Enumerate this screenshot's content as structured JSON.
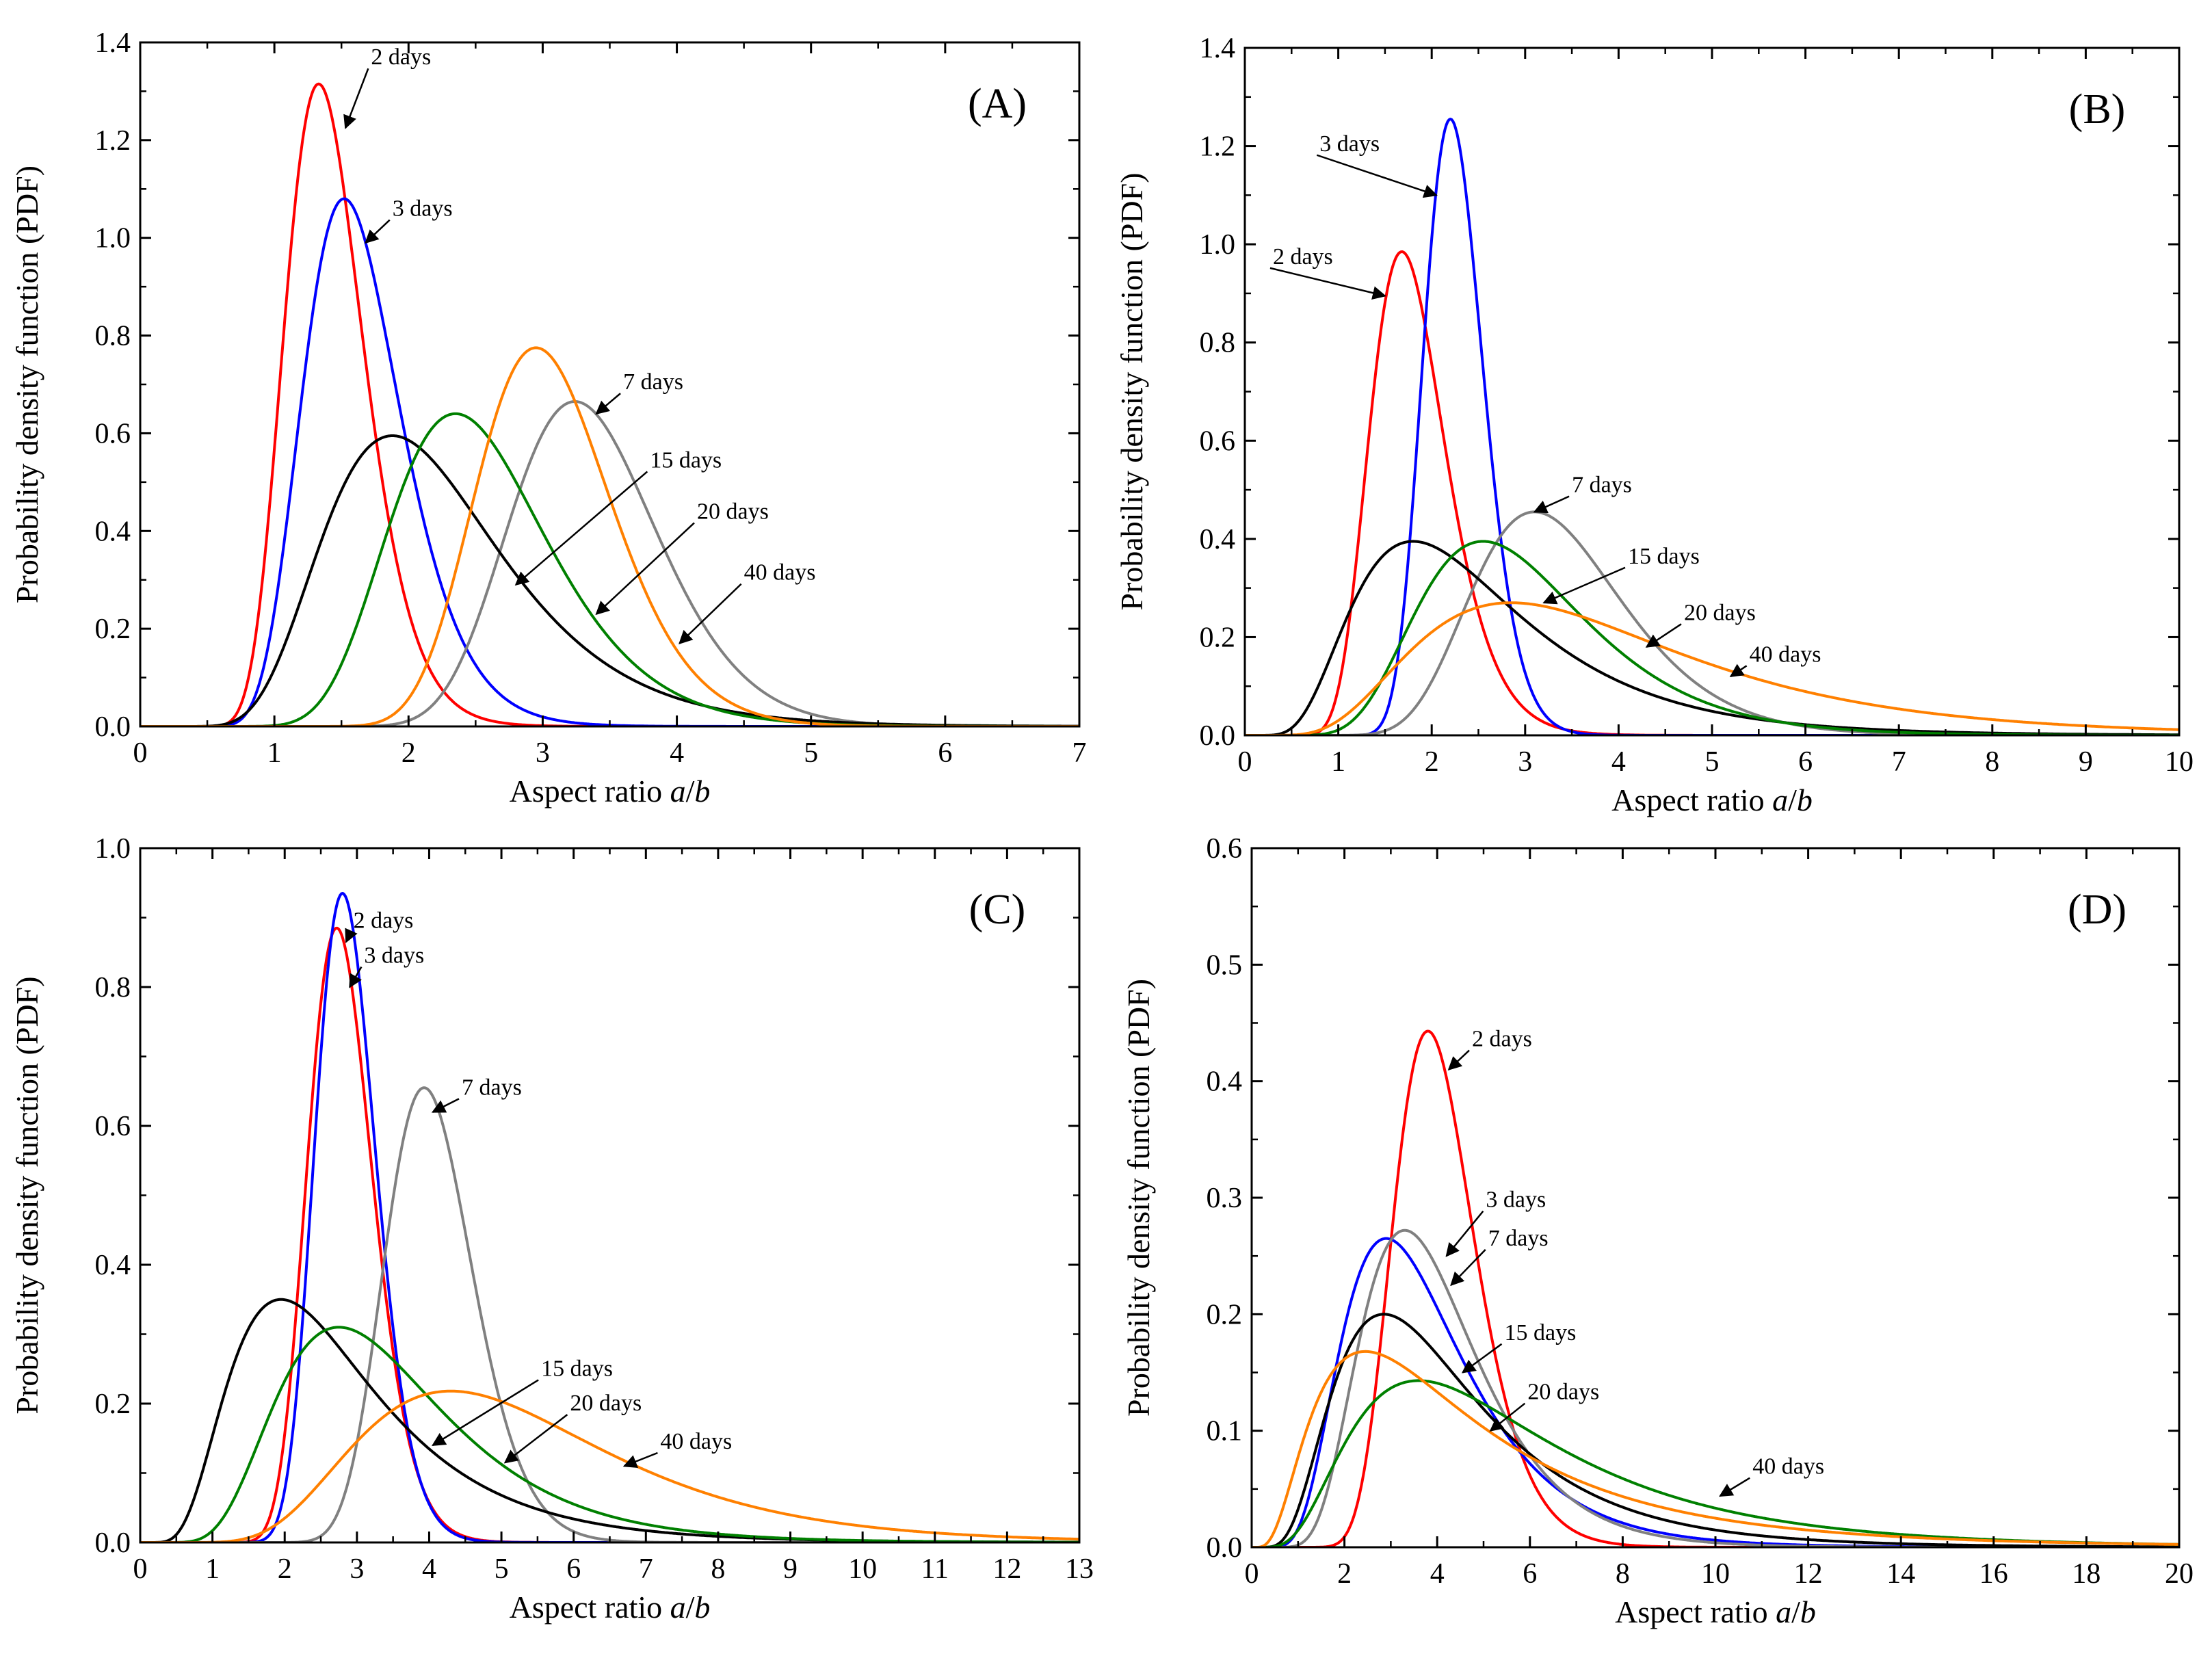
{
  "chart_data": [
    {
      "type": "line",
      "panel_label": "(A)",
      "xlabel": "Aspect ratio a/b",
      "xlabel_parts": [
        "Aspect ratio ",
        "a",
        "/",
        "b"
      ],
      "ylabel": "Probability density function (PDF)",
      "xlim": [
        0,
        7
      ],
      "ylim": [
        0,
        1.4
      ],
      "x_ticks": [
        0,
        1,
        2,
        3,
        4,
        5,
        6,
        7
      ],
      "y_ticks": [
        0.0,
        0.2,
        0.4,
        0.6,
        0.8,
        1.0,
        1.2,
        1.4
      ],
      "y_tick_decimals": 1,
      "series": [
        {
          "name": "2 days",
          "color": "#ff0000",
          "dist": "lognormal",
          "peak_x": 1.33,
          "peak_y": 1.315,
          "shape": 0.22
        },
        {
          "name": "3 days",
          "color": "#0000ff",
          "dist": "lognormal",
          "peak_x": 1.52,
          "peak_y": 1.08,
          "shape": 0.24
        },
        {
          "name": "7 days",
          "color": "#808080",
          "dist": "lognormal",
          "peak_x": 3.24,
          "peak_y": 0.665,
          "shape": 0.17
        },
        {
          "name": "15 days",
          "color": "#000000",
          "dist": "lognormal",
          "peak_x": 1.88,
          "peak_y": 0.595,
          "shape": 0.35
        },
        {
          "name": "20 days",
          "color": "#008000",
          "dist": "lognormal",
          "peak_x": 2.35,
          "peak_y": 0.64,
          "shape": 0.25
        },
        {
          "name": "40 days",
          "color": "#ff8000",
          "dist": "lognormal",
          "peak_x": 2.95,
          "peak_y": 0.775,
          "shape": 0.17
        }
      ],
      "annotations": [
        {
          "text": "2 days",
          "label_x": 1.72,
          "label_y": 1.355,
          "arrow_x": 1.53,
          "arrow_y": 1.225
        },
        {
          "text": "3 days",
          "label_x": 1.88,
          "label_y": 1.045,
          "arrow_x": 1.68,
          "arrow_y": 0.99
        },
        {
          "text": "7 days",
          "label_x": 3.6,
          "label_y": 0.69,
          "arrow_x": 3.4,
          "arrow_y": 0.64
        },
        {
          "text": "15 days",
          "label_x": 3.8,
          "label_y": 0.53,
          "arrow_x": 2.8,
          "arrow_y": 0.29
        },
        {
          "text": "20 days",
          "label_x": 4.15,
          "label_y": 0.425,
          "arrow_x": 3.4,
          "arrow_y": 0.23
        },
        {
          "text": "40 days",
          "label_x": 4.5,
          "label_y": 0.3,
          "arrow_x": 4.02,
          "arrow_y": 0.17
        }
      ]
    },
    {
      "type": "line",
      "panel_label": "(B)",
      "xlabel": "Aspect ratio a/b",
      "xlabel_parts": [
        "Aspect ratio ",
        "a",
        "/",
        "b"
      ],
      "ylabel": "Probability density function (PDF)",
      "xlim": [
        0,
        10
      ],
      "ylim": [
        0,
        1.4
      ],
      "x_ticks": [
        0,
        1,
        2,
        3,
        4,
        5,
        6,
        7,
        8,
        9,
        10
      ],
      "y_ticks": [
        0.0,
        0.2,
        0.4,
        0.6,
        0.8,
        1.0,
        1.2,
        1.4
      ],
      "y_tick_decimals": 1,
      "series": [
        {
          "name": "2 days",
          "color": "#ff0000",
          "dist": "lognormal",
          "peak_x": 1.68,
          "peak_y": 0.985,
          "shape": 0.24
        },
        {
          "name": "3 days",
          "color": "#0000ff",
          "dist": "lognormal",
          "peak_x": 2.2,
          "peak_y": 1.255,
          "shape": 0.145
        },
        {
          "name": "7 days",
          "color": "#808080",
          "dist": "lognormal",
          "peak_x": 3.1,
          "peak_y": 0.455,
          "shape": 0.26
        },
        {
          "name": "15 days",
          "color": "#000000",
          "dist": "lognormal",
          "peak_x": 1.8,
          "peak_y": 0.395,
          "shape": 0.5
        },
        {
          "name": "20 days",
          "color": "#008000",
          "dist": "lognormal",
          "peak_x": 2.55,
          "peak_y": 0.395,
          "shape": 0.35
        },
        {
          "name": "40 days",
          "color": "#ff8000",
          "dist": "lognormal",
          "peak_x": 2.85,
          "peak_y": 0.27,
          "shape": 0.5
        }
      ],
      "annotations": [
        {
          "text": "3 days",
          "label_x": 0.8,
          "label_y": 1.19,
          "arrow_x": 2.05,
          "arrow_y": 1.1
        },
        {
          "text": "2 days",
          "label_x": 0.3,
          "label_y": 0.96,
          "arrow_x": 1.5,
          "arrow_y": 0.895
        },
        {
          "text": "7 days",
          "label_x": 3.5,
          "label_y": 0.495,
          "arrow_x": 3.1,
          "arrow_y": 0.455
        },
        {
          "text": "15 days",
          "label_x": 4.1,
          "label_y": 0.35,
          "arrow_x": 3.2,
          "arrow_y": 0.27
        },
        {
          "text": "20 days",
          "label_x": 4.7,
          "label_y": 0.235,
          "arrow_x": 4.3,
          "arrow_y": 0.18
        },
        {
          "text": "40 days",
          "label_x": 5.4,
          "label_y": 0.15,
          "arrow_x": 5.2,
          "arrow_y": 0.12
        }
      ]
    },
    {
      "type": "line",
      "panel_label": "(C)",
      "xlabel": "Aspect ratio a/b",
      "xlabel_parts": [
        "Aspect ratio ",
        "a",
        "/",
        "b"
      ],
      "ylabel": "Probability density function (PDF)",
      "xlim": [
        0,
        13
      ],
      "ylim": [
        0,
        1.0
      ],
      "x_ticks": [
        0,
        1,
        2,
        3,
        4,
        5,
        6,
        7,
        8,
        9,
        10,
        11,
        12,
        13
      ],
      "y_ticks": [
        0.0,
        0.2,
        0.4,
        0.6,
        0.8,
        1.0
      ],
      "y_tick_decimals": 1,
      "series": [
        {
          "name": "2 days",
          "color": "#ff0000",
          "dist": "lognormal",
          "peak_x": 2.72,
          "peak_y": 0.885,
          "shape": 0.165
        },
        {
          "name": "3 days",
          "color": "#0000ff",
          "dist": "lognormal",
          "peak_x": 2.8,
          "peak_y": 0.935,
          "shape": 0.15
        },
        {
          "name": "7 days",
          "color": "#808080",
          "dist": "lognormal",
          "peak_x": 3.93,
          "peak_y": 0.655,
          "shape": 0.155
        },
        {
          "name": "15 days",
          "color": "#000000",
          "dist": "lognormal",
          "peak_x": 1.95,
          "peak_y": 0.35,
          "shape": 0.52
        },
        {
          "name": "20 days",
          "color": "#008000",
          "dist": "lognormal",
          "peak_x": 2.75,
          "peak_y": 0.31,
          "shape": 0.42
        },
        {
          "name": "40 days",
          "color": "#ff8000",
          "dist": "lognormal",
          "peak_x": 4.3,
          "peak_y": 0.218,
          "shape": 0.4
        }
      ],
      "annotations": [
        {
          "text": "2 days",
          "label_x": 2.95,
          "label_y": 0.885,
          "arrow_x": 2.85,
          "arrow_y": 0.865
        },
        {
          "text": "3 days",
          "label_x": 3.1,
          "label_y": 0.835,
          "arrow_x": 2.9,
          "arrow_y": 0.8
        },
        {
          "text": "7 days",
          "label_x": 4.45,
          "label_y": 0.645,
          "arrow_x": 4.05,
          "arrow_y": 0.62
        },
        {
          "text": "15 days",
          "label_x": 5.55,
          "label_y": 0.24,
          "arrow_x": 4.05,
          "arrow_y": 0.14
        },
        {
          "text": "20 days",
          "label_x": 5.95,
          "label_y": 0.19,
          "arrow_x": 5.05,
          "arrow_y": 0.115
        },
        {
          "text": "40 days",
          "label_x": 7.2,
          "label_y": 0.135,
          "arrow_x": 6.7,
          "arrow_y": 0.11
        }
      ]
    },
    {
      "type": "line",
      "panel_label": "(D)",
      "xlabel": "Aspect ratio a/b",
      "xlabel_parts": [
        "Aspect ratio ",
        "a",
        "/",
        "b"
      ],
      "ylabel": "Probability density function (PDF)",
      "xlim": [
        0,
        20
      ],
      "ylim": [
        0,
        0.6
      ],
      "x_ticks": [
        0,
        2,
        4,
        6,
        8,
        10,
        12,
        14,
        16,
        18,
        20
      ],
      "y_ticks": [
        0.0,
        0.1,
        0.2,
        0.3,
        0.4,
        0.5,
        0.6
      ],
      "y_tick_decimals": 1,
      "series": [
        {
          "name": "2 days",
          "color": "#ff0000",
          "dist": "lognormal",
          "peak_x": 3.8,
          "peak_y": 0.443,
          "shape": 0.23
        },
        {
          "name": "3 days",
          "color": "#0000ff",
          "dist": "lognormal",
          "peak_x": 2.9,
          "peak_y": 0.265,
          "shape": 0.45
        },
        {
          "name": "7 days",
          "color": "#808080",
          "dist": "lognormal",
          "peak_x": 3.3,
          "peak_y": 0.272,
          "shape": 0.38
        },
        {
          "name": "15 days",
          "color": "#000000",
          "dist": "lognormal",
          "peak_x": 2.85,
          "peak_y": 0.2,
          "shape": 0.55
        },
        {
          "name": "20 days",
          "color": "#008000",
          "dist": "lognormal",
          "peak_x": 3.6,
          "peak_y": 0.143,
          "shape": 0.6
        },
        {
          "name": "40 days",
          "color": "#ff8000",
          "dist": "lognormal",
          "peak_x": 2.45,
          "peak_y": 0.168,
          "shape": 0.72
        }
      ],
      "annotations": [
        {
          "text": "2 days",
          "label_x": 4.75,
          "label_y": 0.43,
          "arrow_x": 4.25,
          "arrow_y": 0.41
        },
        {
          "text": "3 days",
          "label_x": 5.05,
          "label_y": 0.292,
          "arrow_x": 4.2,
          "arrow_y": 0.25
        },
        {
          "text": "7 days",
          "label_x": 5.1,
          "label_y": 0.259,
          "arrow_x": 4.3,
          "arrow_y": 0.225
        },
        {
          "text": "15 days",
          "label_x": 5.45,
          "label_y": 0.178,
          "arrow_x": 4.55,
          "arrow_y": 0.15
        },
        {
          "text": "20 days",
          "label_x": 5.95,
          "label_y": 0.127,
          "arrow_x": 5.15,
          "arrow_y": 0.1
        },
        {
          "text": "40 days",
          "label_x": 10.8,
          "label_y": 0.063,
          "arrow_x": 10.1,
          "arrow_y": 0.044
        }
      ]
    }
  ]
}
